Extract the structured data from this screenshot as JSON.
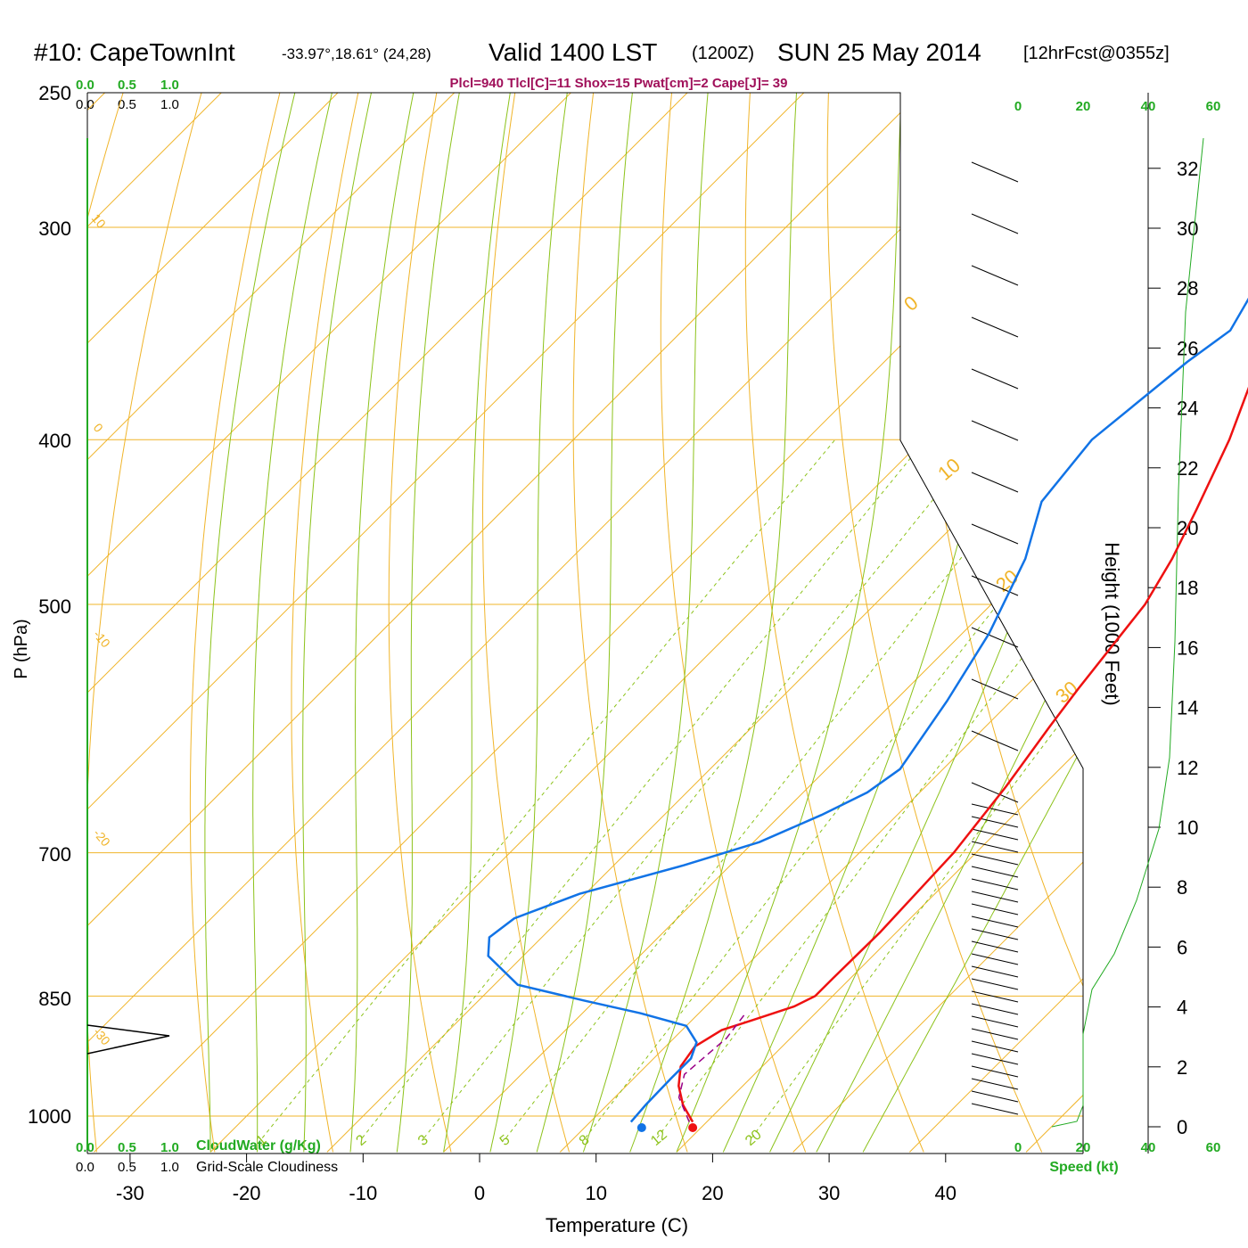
{
  "header": {
    "station": "#10: CapeTownInt",
    "coords": "-33.97°,18.61° (24,28)",
    "valid": "Valid 1400 LST",
    "zulu": "(1200Z)",
    "date": "SUN 25 May 2014",
    "fcst": "[12hrFcst@0355z]",
    "indices": "Plcl=940 Tlcl[C]=11 Shox=15 Pwat[cm]=2 Cape[J]= 39"
  },
  "cloud_scale": {
    "top_green": [
      "0.0",
      "0.5",
      "1.0"
    ],
    "top_black": [
      "0.0",
      "0.5",
      "1.0"
    ],
    "bottom_green": [
      "0.0",
      "0.5",
      "1.0"
    ],
    "bottom_black": [
      "0.0",
      "0.5",
      "1.0"
    ],
    "cloudwater_label": "CloudWater (g/Kg)",
    "cloudiness_label": "Grid-Scale Cloudiness"
  },
  "speed_axis": {
    "top_ticks": [
      "0",
      "20",
      "40",
      "60"
    ],
    "bottom_ticks": [
      "0",
      "20",
      "40",
      "60"
    ],
    "label": "Speed (kt)"
  },
  "chart_data": {
    "type": "line",
    "title": "#10: CapeTownInt",
    "xlabel": "Temperature (C)",
    "ylabel": "P (hPa)",
    "y2label": "Height (1000 Feet)",
    "xlim": [
      -33,
      45
    ],
    "ylim_hpa": [
      1030,
      250
    ],
    "x_ticks": [
      "-30",
      "-20",
      "-10",
      "0",
      "10",
      "20",
      "30",
      "40"
    ],
    "y_ticks": [
      "250",
      "300",
      "400",
      "500",
      "700",
      "850",
      "1000"
    ],
    "height_ticks": [
      "0",
      "2",
      "4",
      "6",
      "8",
      "10",
      "12",
      "14",
      "16",
      "18",
      "20",
      "22",
      "24",
      "26",
      "28",
      "30",
      "32"
    ],
    "isotherm_labels": [
      "0",
      "10",
      "20",
      "30"
    ],
    "isotherm_left_labels": [
      "10",
      "0",
      "-10",
      "-20",
      "-30"
    ],
    "mixing_ratio_labels": [
      "1",
      "2",
      "3",
      "5",
      "8",
      "12",
      "20"
    ],
    "series": [
      {
        "color": "#ee1111",
        "points": [
          [
            18.8,
            1008
          ],
          [
            16.5,
            985
          ],
          [
            14.5,
            960
          ],
          [
            13.0,
            935
          ],
          [
            12.5,
            910
          ],
          [
            13.4,
            890
          ],
          [
            15.2,
            878
          ],
          [
            17.6,
            862
          ],
          [
            18.5,
            850
          ],
          [
            18.5,
            830
          ],
          [
            18.6,
            780
          ],
          [
            18.1,
            700
          ],
          [
            16.9,
            640
          ],
          [
            15.5,
            590
          ],
          [
            14.7,
            560
          ],
          [
            13.2,
            500
          ],
          [
            11.6,
            470
          ],
          [
            9.5,
            440
          ],
          [
            6.3,
            400
          ],
          [
            3.2,
            370
          ],
          [
            -0.4,
            340
          ],
          [
            -4.2,
            310
          ],
          [
            -12.0,
            272
          ]
        ]
      },
      {
        "color": "#1173e6",
        "points": [
          [
            13.5,
            1008
          ],
          [
            13.3,
            985
          ],
          [
            13.2,
            950
          ],
          [
            13.2,
            925
          ],
          [
            12.3,
            905
          ],
          [
            10.0,
            885
          ],
          [
            5.0,
            870
          ],
          [
            -1.0,
            855
          ],
          [
            -8.0,
            837
          ],
          [
            -13.0,
            805
          ],
          [
            -14.5,
            785
          ],
          [
            -14.0,
            765
          ],
          [
            -10.5,
            740
          ],
          [
            -4.0,
            712
          ],
          [
            0.5,
            690
          ],
          [
            3.5,
            665
          ],
          [
            5.5,
            645
          ],
          [
            6.3,
            625
          ],
          [
            4.5,
            570
          ],
          [
            2.3,
            520
          ],
          [
            -1.0,
            470
          ],
          [
            -4.5,
            435
          ],
          [
            -5.5,
            400
          ],
          [
            -4.0,
            360
          ],
          [
            -3.0,
            345
          ],
          [
            -5.0,
            320
          ],
          [
            -10.0,
            285
          ],
          [
            -16.0,
            272
          ]
        ]
      }
    ],
    "parcel": {
      "color": "#990088",
      "points": [
        [
          18.5,
          1008
        ],
        [
          15.5,
          975
        ],
        [
          14.0,
          945
        ],
        [
          14.5,
          900
        ],
        [
          14.0,
          870
        ]
      ]
    },
    "surface_temp": 18.8,
    "surface_dewpoint": 13.5,
    "wind_speed_profile_kt": [
      [
        0,
        0.3
      ],
      [
        1,
        1
      ],
      [
        3,
        20
      ],
      [
        5,
        20
      ],
      [
        7,
        20
      ],
      [
        9,
        20
      ],
      [
        11,
        20
      ],
      [
        13,
        20
      ],
      [
        15,
        20
      ],
      [
        17,
        20
      ],
      [
        19,
        20
      ],
      [
        21,
        20
      ],
      [
        23,
        20
      ],
      [
        25,
        20
      ],
      [
        27,
        20
      ],
      [
        29,
        20
      ],
      [
        31,
        20
      ],
      [
        33,
        20
      ],
      [
        35,
        20
      ],
      [
        37,
        20
      ],
      [
        39,
        20
      ],
      [
        41,
        20
      ],
      [
        43,
        20
      ],
      [
        45,
        20
      ],
      [
        47,
        20
      ],
      [
        49,
        20
      ],
      [
        51,
        20
      ],
      [
        53,
        20
      ],
      [
        55,
        20
      ],
      [
        57,
        20
      ],
      [
        59,
        20
      ],
      [
        61,
        20
      ],
      [
        63,
        20
      ],
      [
        65,
        20
      ],
      [
        67,
        20
      ],
      [
        69,
        20
      ],
      [
        71,
        20
      ],
      [
        73,
        20
      ],
      [
        75,
        20
      ],
      [
        77,
        20
      ],
      [
        79,
        20
      ],
      [
        81,
        20
      ],
      [
        83,
        20
      ],
      [
        85,
        20
      ],
      [
        87,
        20
      ],
      [
        89,
        20
      ],
      [
        91,
        20
      ],
      [
        93,
        20
      ],
      [
        95,
        20
      ],
      [
        97,
        20
      ],
      [
        99,
        20
      ],
      [
        101,
        20
      ],
      [
        103,
        20
      ],
      [
        105,
        20
      ],
      [
        107,
        20
      ],
      [
        109,
        20
      ],
      [
        111,
        20
      ],
      [
        113,
        20
      ],
      [
        115,
        20
      ],
      [
        117,
        20
      ],
      [
        119,
        20
      ],
      [
        121,
        20
      ],
      [
        123,
        20
      ],
      [
        125,
        20
      ],
      [
        127,
        20
      ],
      [
        129,
        20
      ],
      [
        131,
        20
      ],
      [
        133,
        20
      ],
      [
        135,
        20
      ],
      [
        137,
        20
      ],
      [
        139,
        20
      ],
      [
        141,
        20
      ],
      [
        143,
        20
      ],
      [
        145,
        20
      ],
      [
        147,
        20
      ],
      [
        149,
        20
      ],
      [
        151,
        20
      ],
      [
        153,
        20
      ],
      [
        155,
        20
      ],
      [
        157,
        20
      ],
      [
        159,
        20
      ],
      [
        161,
        20
      ],
      [
        163,
        20
      ],
      [
        165,
        20
      ],
      [
        167,
        20
      ],
      [
        169,
        20
      ],
      [
        171,
        20
      ],
      [
        173,
        20
      ],
      [
        175,
        20
      ],
      [
        177,
        20
      ],
      [
        179,
        20
      ]
    ],
    "grid": true
  },
  "colors": {
    "isotherm": "#f0b429",
    "isobar": "#f0b429",
    "dry_adiabat": "#f0b429",
    "moist_adiabat": "#8cc21a",
    "mixing_ratio": "#8cc21a",
    "axis_green": "#22aa22"
  }
}
